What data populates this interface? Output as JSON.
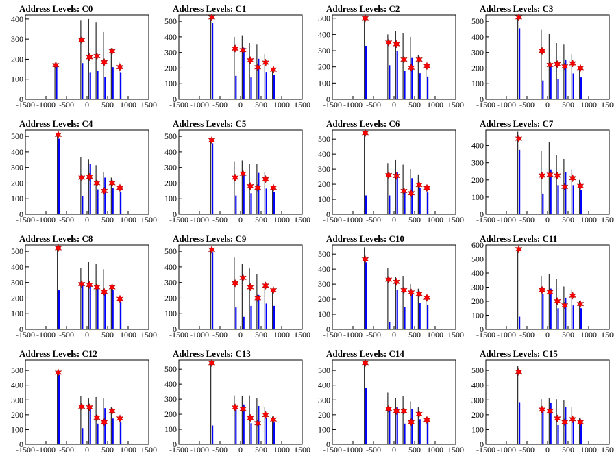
{
  "figure": {
    "x_ticks": [
      -1500,
      -1000,
      -500,
      0,
      500,
      1000,
      1500
    ],
    "xlim": [
      -1500,
      1500
    ],
    "hist_color": "#0000ff",
    "spike_color": "#000000",
    "marker_color": "#ff0000",
    "marker_shape": "star-6"
  },
  "chart_data": [
    {
      "type": "bar",
      "title": "Address Levels: C0",
      "ylim": [
        0,
        420
      ],
      "y_ticks": [
        0,
        100,
        200,
        300,
        400
      ],
      "peaks_x": [
        -760,
        -130,
        60,
        240,
        420,
        610,
        800
      ],
      "spikes": [
        165,
        395,
        400,
        385,
        335,
        255,
        185
      ],
      "bars": [
        175,
        180,
        135,
        140,
        110,
        160,
        135
      ],
      "markers": [
        170,
        295,
        210,
        215,
        185,
        240,
        160
      ]
    },
    {
      "type": "bar",
      "title": "Address Levels: C1",
      "ylim": [
        0,
        540
      ],
      "y_ticks": [
        0,
        100,
        200,
        300,
        400,
        500
      ],
      "peaks_x": [
        -700,
        -130,
        60,
        240,
        420,
        610,
        800
      ],
      "spikes": [
        525,
        400,
        410,
        360,
        350,
        290,
        195
      ],
      "bars": [
        490,
        150,
        330,
        140,
        260,
        175,
        155
      ],
      "markers": [
        525,
        325,
        315,
        250,
        205,
        235,
        190
      ]
    },
    {
      "type": "bar",
      "title": "Address Levels: C2",
      "ylim": [
        0,
        520
      ],
      "y_ticks": [
        0,
        100,
        200,
        300,
        400,
        500
      ],
      "peaks_x": [
        -700,
        -130,
        60,
        240,
        420,
        610,
        800
      ],
      "spikes": [
        505,
        400,
        420,
        410,
        385,
        275,
        200
      ],
      "bars": [
        330,
        210,
        300,
        175,
        255,
        160,
        140
      ],
      "markers": [
        500,
        350,
        340,
        245,
        195,
        245,
        205
      ]
    },
    {
      "type": "bar",
      "title": "Address Levels: C3",
      "ylim": [
        0,
        540
      ],
      "y_ticks": [
        0,
        100,
        200,
        300,
        400,
        500
      ],
      "peaks_x": [
        -700,
        -130,
        60,
        240,
        420,
        610,
        800
      ],
      "spikes": [
        525,
        445,
        420,
        360,
        350,
        290,
        200
      ],
      "bars": [
        455,
        120,
        215,
        130,
        255,
        165,
        140
      ],
      "markers": [
        525,
        310,
        220,
        225,
        210,
        230,
        200
      ]
    },
    {
      "type": "bar",
      "title": "Address Levels: C4",
      "ylim": [
        0,
        540
      ],
      "y_ticks": [
        0,
        100,
        200,
        300,
        400,
        500
      ],
      "peaks_x": [
        -700,
        -130,
        60,
        240,
        420,
        610,
        800
      ],
      "spikes": [
        505,
        365,
        350,
        315,
        270,
        235,
        180
      ],
      "bars": [
        485,
        115,
        325,
        160,
        235,
        170,
        145
      ],
      "markers": [
        510,
        235,
        240,
        200,
        150,
        200,
        170
      ]
    },
    {
      "type": "bar",
      "title": "Address Levels: C5",
      "ylim": [
        0,
        540
      ],
      "y_ticks": [
        0,
        100,
        200,
        300,
        400,
        500
      ],
      "peaks_x": [
        -700,
        -130,
        60,
        240,
        420,
        610,
        800
      ],
      "spikes": [
        480,
        340,
        345,
        325,
        325,
        270,
        175
      ],
      "bars": [
        455,
        120,
        270,
        135,
        265,
        165,
        145
      ],
      "markers": [
        475,
        235,
        260,
        180,
        170,
        225,
        170
      ]
    },
    {
      "type": "bar",
      "title": "Address Levels: C6",
      "ylim": [
        0,
        560
      ],
      "y_ticks": [
        0,
        100,
        200,
        300,
        400,
        500
      ],
      "peaks_x": [
        -700,
        -130,
        60,
        240,
        420,
        610,
        800
      ],
      "spikes": [
        545,
        340,
        360,
        330,
        300,
        265,
        185
      ],
      "bars": [
        125,
        125,
        280,
        165,
        240,
        175,
        145
      ],
      "markers": [
        540,
        260,
        255,
        155,
        140,
        195,
        175
      ]
    },
    {
      "type": "bar",
      "title": "Address Levels: C7",
      "ylim": [
        0,
        490
      ],
      "y_ticks": [
        0,
        100,
        200,
        300,
        400
      ],
      "peaks_x": [
        -700,
        -130,
        60,
        240,
        420,
        610,
        800
      ],
      "spikes": [
        480,
        370,
        420,
        345,
        320,
        260,
        200
      ],
      "bars": [
        375,
        120,
        260,
        170,
        245,
        170,
        140
      ],
      "markers": [
        440,
        225,
        230,
        225,
        160,
        210,
        165
      ]
    },
    {
      "type": "bar",
      "title": "Address Levels: C8",
      "ylim": [
        0,
        540
      ],
      "y_ticks": [
        0,
        100,
        200,
        300,
        400,
        500
      ],
      "peaks_x": [
        -700,
        -130,
        60,
        240,
        420,
        610,
        800
      ],
      "spikes": [
        530,
        395,
        430,
        420,
        385,
        280,
        210
      ],
      "bars": [
        250,
        290,
        285,
        260,
        230,
        255,
        175
      ],
      "markers": [
        520,
        290,
        285,
        270,
        240,
        270,
        195
      ]
    },
    {
      "type": "bar",
      "title": "Address Levels: C9",
      "ylim": [
        0,
        540
      ],
      "y_ticks": [
        0,
        100,
        200,
        300,
        400,
        500
      ],
      "peaks_x": [
        -700,
        -130,
        60,
        240,
        420,
        610,
        800
      ],
      "spikes": [
        515,
        460,
        420,
        390,
        355,
        290,
        255
      ],
      "bars": [
        495,
        140,
        80,
        150,
        220,
        165,
        150
      ],
      "markers": [
        510,
        295,
        330,
        270,
        200,
        280,
        250
      ]
    },
    {
      "type": "bar",
      "title": "Address Levels: C10",
      "ylim": [
        0,
        560
      ],
      "y_ticks": [
        0,
        100,
        200,
        300,
        400,
        500
      ],
      "peaks_x": [
        -700,
        -130,
        60,
        240,
        420,
        610,
        800
      ],
      "spikes": [
        545,
        405,
        350,
        355,
        300,
        270,
        210
      ],
      "bars": [
        445,
        50,
        260,
        150,
        235,
        175,
        160
      ],
      "markers": [
        465,
        330,
        315,
        260,
        245,
        235,
        210
      ]
    },
    {
      "type": "bar",
      "title": "Address Levels: C11",
      "ylim": [
        0,
        600
      ],
      "y_ticks": [
        0,
        100,
        200,
        300,
        400,
        500,
        600
      ],
      "peaks_x": [
        -700,
        -130,
        60,
        240,
        420,
        610,
        800
      ],
      "spikes": [
        570,
        380,
        395,
        360,
        305,
        280,
        200
      ],
      "bars": [
        90,
        250,
        290,
        150,
        225,
        170,
        150
      ],
      "markers": [
        570,
        280,
        265,
        200,
        170,
        240,
        180
      ]
    },
    {
      "type": "bar",
      "title": "Address Levels: C12",
      "ylim": [
        0,
        570
      ],
      "y_ticks": [
        0,
        100,
        200,
        300,
        400,
        500
      ],
      "peaks_x": [
        -700,
        -130,
        60,
        240,
        420,
        610,
        800
      ],
      "spikes": [
        485,
        325,
        310,
        320,
        310,
        255,
        190
      ],
      "bars": [
        470,
        110,
        250,
        140,
        245,
        175,
        150
      ],
      "markers": [
        485,
        255,
        250,
        180,
        150,
        225,
        175
      ]
    },
    {
      "type": "bar",
      "title": "Address Levels: C13",
      "ylim": [
        0,
        560
      ],
      "y_ticks": [
        0,
        100,
        200,
        300,
        400,
        500
      ],
      "peaks_x": [
        -700,
        -130,
        60,
        240,
        420,
        610,
        800
      ],
      "spikes": [
        540,
        325,
        320,
        325,
        305,
        250,
        185
      ],
      "bars": [
        125,
        240,
        265,
        140,
        255,
        175,
        145
      ],
      "markers": [
        540,
        245,
        235,
        175,
        140,
        195,
        165
      ]
    },
    {
      "type": "bar",
      "title": "Address Levels: C14",
      "ylim": [
        0,
        570
      ],
      "y_ticks": [
        0,
        100,
        200,
        300,
        400,
        500
      ],
      "peaks_x": [
        -700,
        -130,
        60,
        240,
        420,
        610,
        800
      ],
      "spikes": [
        550,
        350,
        315,
        325,
        290,
        255,
        185
      ],
      "bars": [
        380,
        235,
        250,
        140,
        240,
        170,
        150
      ],
      "markers": [
        550,
        240,
        225,
        225,
        150,
        205,
        165
      ]
    },
    {
      "type": "bar",
      "title": "Address Levels: C15",
      "ylim": [
        0,
        570
      ],
      "y_ticks": [
        0,
        100,
        200,
        300,
        400,
        500
      ],
      "peaks_x": [
        -700,
        -130,
        60,
        240,
        420,
        610,
        800
      ],
      "spikes": [
        530,
        305,
        310,
        305,
        300,
        250,
        180
      ],
      "bars": [
        285,
        230,
        280,
        130,
        255,
        165,
        140
      ],
      "markers": [
        490,
        235,
        225,
        175,
        150,
        170,
        150
      ]
    }
  ]
}
